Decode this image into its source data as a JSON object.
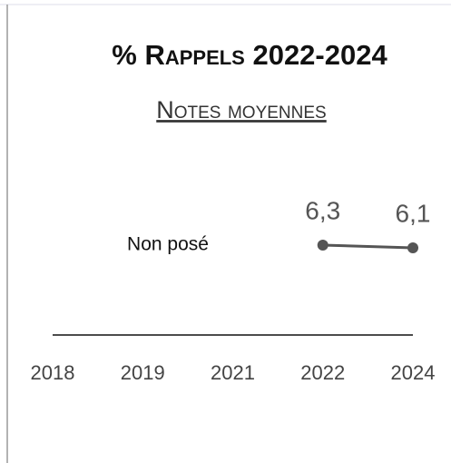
{
  "chart_data": {
    "type": "line",
    "title": "% Rappels 2022-2024",
    "subtitle": "Notes moyennes",
    "annotation": "Non posé",
    "categories": [
      "2018",
      "2019",
      "2021",
      "2022",
      "2024"
    ],
    "values": [
      null,
      null,
      null,
      6.3,
      6.1
    ],
    "value_labels": [
      null,
      null,
      null,
      "6,3",
      "6,1"
    ],
    "color": "#555555"
  }
}
